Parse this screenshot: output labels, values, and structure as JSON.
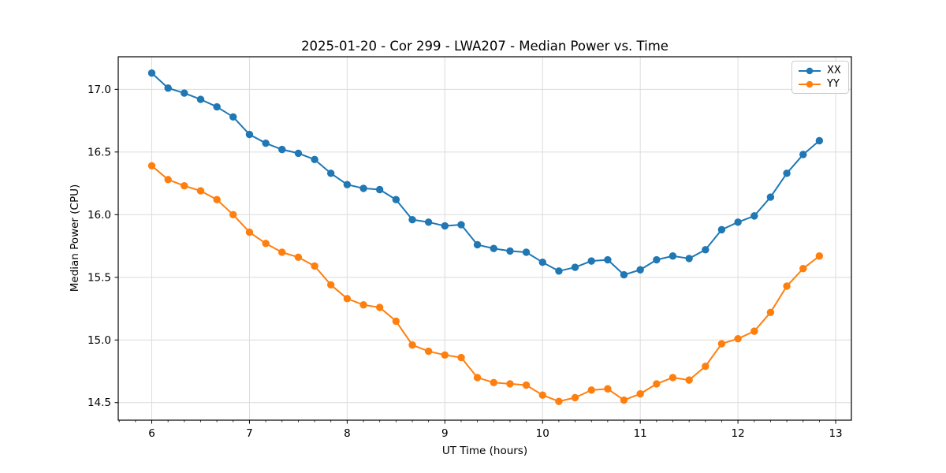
{
  "chart_data": {
    "type": "line",
    "title": "2025-01-20 - Cor 299 - LWA207 - Median Power vs. Time",
    "xlabel": "UT Time (hours)",
    "ylabel": "Median Power (CPU)",
    "xlim": [
      5.657,
      13.161
    ],
    "ylim": [
      14.36,
      17.26
    ],
    "xticks": [
      6,
      7,
      8,
      9,
      10,
      11,
      12,
      13
    ],
    "yticks": [
      14.5,
      15.0,
      15.5,
      16.0,
      16.5,
      17.0
    ],
    "x_minor_divisions": 6,
    "grid": true,
    "grid_color": "#dcdcdc",
    "axis_color": "#000000",
    "legend_position": "upper right",
    "x": [
      6.0,
      6.167,
      6.333,
      6.5,
      6.667,
      6.833,
      7.0,
      7.167,
      7.333,
      7.5,
      7.667,
      7.833,
      8.0,
      8.167,
      8.333,
      8.5,
      8.667,
      8.833,
      9.0,
      9.167,
      9.333,
      9.5,
      9.667,
      9.833,
      10.0,
      10.167,
      10.333,
      10.5,
      10.667,
      10.833,
      11.0,
      11.167,
      11.333,
      11.5,
      11.667,
      11.833,
      12.0,
      12.167,
      12.333,
      12.5,
      12.667,
      12.833
    ],
    "series": [
      {
        "name": "XX",
        "color": "#1f77b4",
        "values": [
          17.13,
          17.01,
          16.97,
          16.92,
          16.86,
          16.78,
          16.64,
          16.57,
          16.52,
          16.49,
          16.44,
          16.33,
          16.24,
          16.21,
          16.2,
          16.12,
          15.96,
          15.94,
          15.91,
          15.92,
          15.76,
          15.73,
          15.71,
          15.7,
          15.62,
          15.55,
          15.58,
          15.63,
          15.64,
          15.52,
          15.56,
          15.64,
          15.67,
          15.65,
          15.72,
          15.88,
          15.94,
          15.99,
          16.14,
          16.33,
          16.48,
          16.59
        ]
      },
      {
        "name": "YY",
        "color": "#ff7f0e",
        "values": [
          16.39,
          16.28,
          16.23,
          16.19,
          16.12,
          16.0,
          15.86,
          15.77,
          15.7,
          15.66,
          15.59,
          15.44,
          15.33,
          15.28,
          15.26,
          15.15,
          14.96,
          14.91,
          14.88,
          14.86,
          14.7,
          14.66,
          14.65,
          14.64,
          14.56,
          14.51,
          14.54,
          14.6,
          14.61,
          14.52,
          14.57,
          14.65,
          14.7,
          14.68,
          14.79,
          14.97,
          15.01,
          15.07,
          15.22,
          15.43,
          15.57,
          15.67
        ]
      }
    ]
  }
}
